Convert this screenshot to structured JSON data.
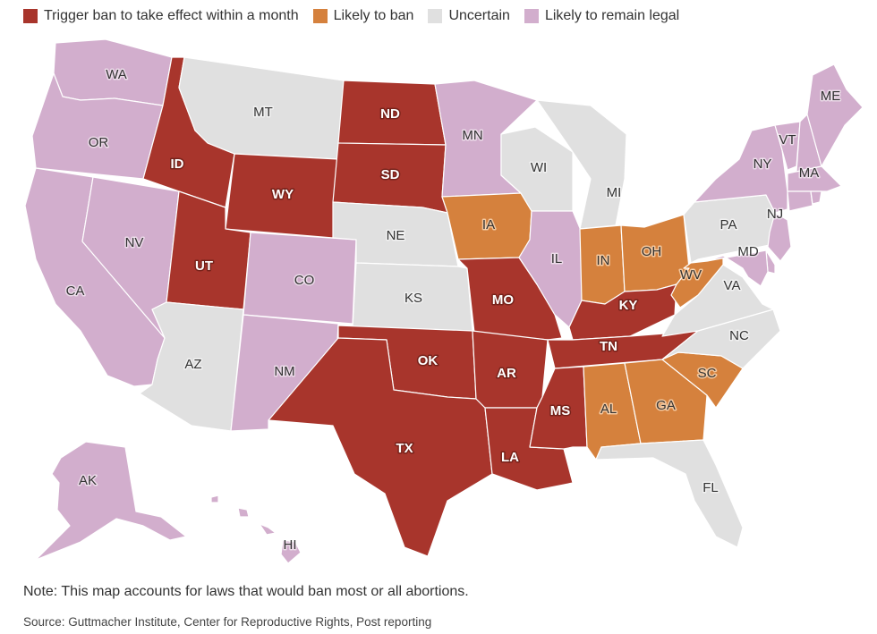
{
  "legend": {
    "items": [
      {
        "key": "trigger",
        "label": "Trigger ban to take effect within a month",
        "color": "#a8352c"
      },
      {
        "key": "likely_ban",
        "label": "Likely to ban",
        "color": "#d5813d"
      },
      {
        "key": "uncertain",
        "label": "Uncertain",
        "color": "#e0e0e0"
      },
      {
        "key": "legal",
        "label": "Likely to remain legal",
        "color": "#d2aecd"
      }
    ]
  },
  "states": {
    "WA": "legal",
    "OR": "legal",
    "CA": "legal",
    "NV": "legal",
    "ID": "trigger",
    "MT": "uncertain",
    "WY": "trigger",
    "UT": "trigger",
    "AZ": "uncertain",
    "CO": "legal",
    "NM": "legal",
    "ND": "trigger",
    "SD": "trigger",
    "NE": "uncertain",
    "KS": "uncertain",
    "OK": "trigger",
    "TX": "trigger",
    "MN": "legal",
    "IA": "likely_ban",
    "MO": "trigger",
    "AR": "trigger",
    "LA": "trigger",
    "WI": "uncertain",
    "IL": "legal",
    "MI": "uncertain",
    "IN": "likely_ban",
    "OH": "likely_ban",
    "KY": "trigger",
    "TN": "trigger",
    "MS": "trigger",
    "AL": "likely_ban",
    "GA": "likely_ban",
    "FL": "uncertain",
    "SC": "likely_ban",
    "NC": "uncertain",
    "VA": "uncertain",
    "WV": "likely_ban",
    "PA": "uncertain",
    "NY": "legal",
    "VT": "legal",
    "NH": "legal",
    "ME": "legal",
    "MA": "legal",
    "CT": "legal",
    "RI": "legal",
    "NJ": "legal",
    "DE": "legal",
    "MD": "legal",
    "AK": "legal",
    "HI": "legal"
  },
  "labels": {
    "WA": "WA",
    "OR": "OR",
    "CA": "CA",
    "NV": "NV",
    "ID": "ID",
    "MT": "MT",
    "WY": "WY",
    "UT": "UT",
    "AZ": "AZ",
    "CO": "CO",
    "NM": "NM",
    "ND": "ND",
    "SD": "SD",
    "NE": "NE",
    "KS": "KS",
    "OK": "OK",
    "TX": "TX",
    "MN": "MN",
    "IA": "IA",
    "MO": "MO",
    "AR": "AR",
    "LA": "LA",
    "WI": "WI",
    "IL": "IL",
    "MI": "MI",
    "IN": "IN",
    "OH": "OH",
    "KY": "KY",
    "TN": "TN",
    "MS": "MS",
    "AL": "AL",
    "GA": "GA",
    "FL": "FL",
    "SC": "SC",
    "NC": "NC",
    "VA": "VA",
    "WV": "WV",
    "PA": "PA",
    "NY": "NY",
    "VT": "VT",
    "ME": "ME",
    "MA": "MA",
    "NJ": "NJ",
    "MD": "MD",
    "AK": "AK",
    "HI": "HI"
  },
  "note": "Note: This map accounts for laws that would ban most or all abortions.",
  "source": "Source: Guttmacher Institute, Center for Reproductive Rights, Post reporting"
}
